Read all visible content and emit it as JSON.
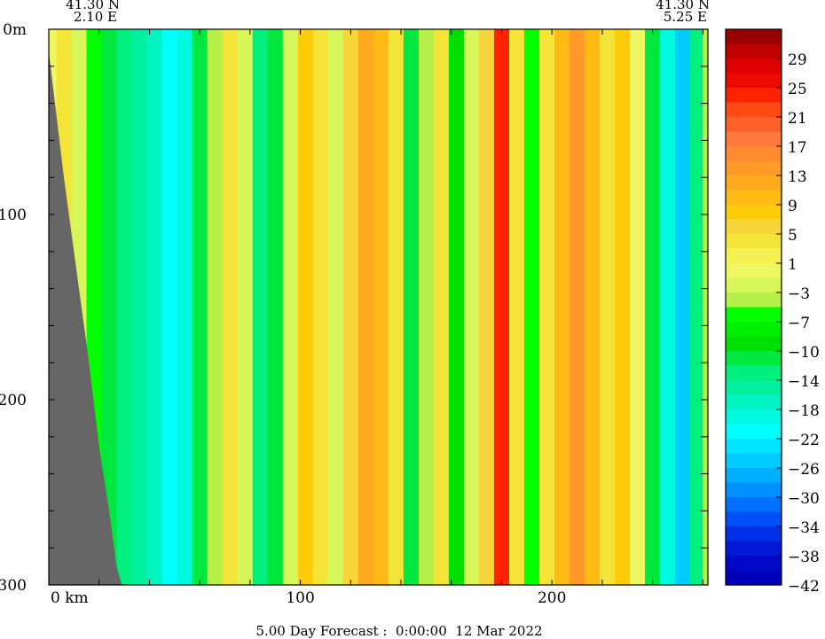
{
  "chart_data": {
    "type": "heatmap",
    "subtype": "vertical-section",
    "corner_left": {
      "lat": "41.30 N",
      "lon": "2.10 E"
    },
    "corner_right": {
      "lat": "41.30 N",
      "lon": "5.25 E"
    },
    "x_unit": "km",
    "x_ticks": [
      {
        "value": 0,
        "label": "0 km"
      },
      {
        "value": 100,
        "label": "100"
      },
      {
        "value": 200,
        "label": "200"
      }
    ],
    "xlim": [
      0,
      262
    ],
    "y_unit": "m",
    "y_ticks": [
      {
        "value": 0,
        "label": "0m"
      },
      {
        "value": 100,
        "label": "100"
      },
      {
        "value": 200,
        "label": "200"
      },
      {
        "value": 300,
        "label": "300"
      }
    ],
    "ylim": [
      0,
      300
    ],
    "y_inverted": true,
    "colorbar": {
      "levels": [
        {
          "value": 31,
          "color": "#9b0000",
          "label": ""
        },
        {
          "value": 29,
          "color": "#c00000",
          "label": "29"
        },
        {
          "value": 27,
          "color": "#dc0000",
          "label": ""
        },
        {
          "value": 25,
          "color": "#ee0a00",
          "label": "25"
        },
        {
          "value": 23,
          "color": "#ff2200",
          "label": ""
        },
        {
          "value": 21,
          "color": "#ff4a14",
          "label": "21"
        },
        {
          "value": 19,
          "color": "#ff5f28",
          "label": ""
        },
        {
          "value": 17,
          "color": "#ff7a3c",
          "label": "17"
        },
        {
          "value": 15,
          "color": "#ff8a30",
          "label": ""
        },
        {
          "value": 13,
          "color": "#ff9a28",
          "label": "13"
        },
        {
          "value": 11,
          "color": "#ffaa1e",
          "label": ""
        },
        {
          "value": 9,
          "color": "#ffbb14",
          "label": "9"
        },
        {
          "value": 7,
          "color": "#ffcc0a",
          "label": ""
        },
        {
          "value": 5,
          "color": "#f6d43a",
          "label": "5"
        },
        {
          "value": 3,
          "color": "#f4e438",
          "label": ""
        },
        {
          "value": 1,
          "color": "#f4f052",
          "label": "1"
        },
        {
          "value": -1,
          "color": "#eef664",
          "label": ""
        },
        {
          "value": -3,
          "color": "#d6f65a",
          "label": "−3"
        },
        {
          "value": -5,
          "color": "#b8f04a",
          "label": ""
        },
        {
          "value": -7,
          "color": "#00ff00",
          "label": "−7"
        },
        {
          "value": -9,
          "color": "#00f000",
          "label": ""
        },
        {
          "value": -10,
          "color": "#00e000",
          "label": "−10"
        },
        {
          "value": -12,
          "color": "#00e840",
          "label": ""
        },
        {
          "value": -14,
          "color": "#00f080",
          "label": "−14"
        },
        {
          "value": -16,
          "color": "#00f0a0",
          "label": ""
        },
        {
          "value": -18,
          "color": "#00f4c0",
          "label": "−18"
        },
        {
          "value": -20,
          "color": "#00f8e0",
          "label": ""
        },
        {
          "value": -22,
          "color": "#00ffff",
          "label": "−22"
        },
        {
          "value": -24,
          "color": "#00e4ff",
          "label": ""
        },
        {
          "value": -26,
          "color": "#00ccff",
          "label": "−26"
        },
        {
          "value": -28,
          "color": "#00b0ff",
          "label": ""
        },
        {
          "value": -30,
          "color": "#0090ff",
          "label": "−30"
        },
        {
          "value": -32,
          "color": "#0070ff",
          "label": ""
        },
        {
          "value": -34,
          "color": "#0050f8",
          "label": "−34"
        },
        {
          "value": -36,
          "color": "#0030e8",
          "label": ""
        },
        {
          "value": -38,
          "color": "#0018d8",
          "label": "−38"
        },
        {
          "value": -40,
          "color": "#0008c8",
          "label": ""
        },
        {
          "value": -42,
          "color": "#0000b8",
          "label": "−42"
        }
      ]
    },
    "value_columns_approx": [
      {
        "x": 0,
        "value": -2
      },
      {
        "x": 6,
        "value": 2
      },
      {
        "x": 12,
        "value": -3
      },
      {
        "x": 18,
        "value": -8
      },
      {
        "x": 24,
        "value": -12
      },
      {
        "x": 30,
        "value": -14
      },
      {
        "x": 36,
        "value": -16
      },
      {
        "x": 42,
        "value": -18
      },
      {
        "x": 48,
        "value": -22
      },
      {
        "x": 54,
        "value": -20
      },
      {
        "x": 60,
        "value": -12
      },
      {
        "x": 66,
        "value": -6
      },
      {
        "x": 72,
        "value": 2
      },
      {
        "x": 78,
        "value": -4
      },
      {
        "x": 84,
        "value": -14
      },
      {
        "x": 90,
        "value": -12
      },
      {
        "x": 96,
        "value": -3
      },
      {
        "x": 102,
        "value": 6
      },
      {
        "x": 108,
        "value": 2
      },
      {
        "x": 114,
        "value": -4
      },
      {
        "x": 120,
        "value": 5
      },
      {
        "x": 126,
        "value": 10
      },
      {
        "x": 132,
        "value": 9
      },
      {
        "x": 138,
        "value": 2
      },
      {
        "x": 144,
        "value": -12
      },
      {
        "x": 150,
        "value": -6
      },
      {
        "x": 156,
        "value": 3
      },
      {
        "x": 162,
        "value": -10
      },
      {
        "x": 168,
        "value": -4
      },
      {
        "x": 174,
        "value": 4
      },
      {
        "x": 180,
        "value": 22
      },
      {
        "x": 186,
        "value": 3
      },
      {
        "x": 192,
        "value": -8
      },
      {
        "x": 198,
        "value": 2
      },
      {
        "x": 204,
        "value": 9
      },
      {
        "x": 210,
        "value": 13
      },
      {
        "x": 216,
        "value": 8
      },
      {
        "x": 222,
        "value": 3
      },
      {
        "x": 228,
        "value": 6
      },
      {
        "x": 234,
        "value": -2
      },
      {
        "x": 240,
        "value": -12
      },
      {
        "x": 246,
        "value": -20
      },
      {
        "x": 252,
        "value": -26
      },
      {
        "x": 258,
        "value": -14
      },
      {
        "x": 262,
        "value": -5
      }
    ],
    "bathymetry_depth": [
      {
        "x": 0,
        "depth": 12
      },
      {
        "x": 6,
        "depth": 80
      },
      {
        "x": 12,
        "depth": 140
      },
      {
        "x": 16,
        "depth": 180
      },
      {
        "x": 20,
        "depth": 225
      },
      {
        "x": 24,
        "depth": 260
      },
      {
        "x": 27,
        "depth": 290
      },
      {
        "x": 29,
        "depth": 300
      }
    ],
    "land_color": "#666666"
  },
  "footer": "5.00 Day Forecast :  0:00:00  12 Mar 2022"
}
